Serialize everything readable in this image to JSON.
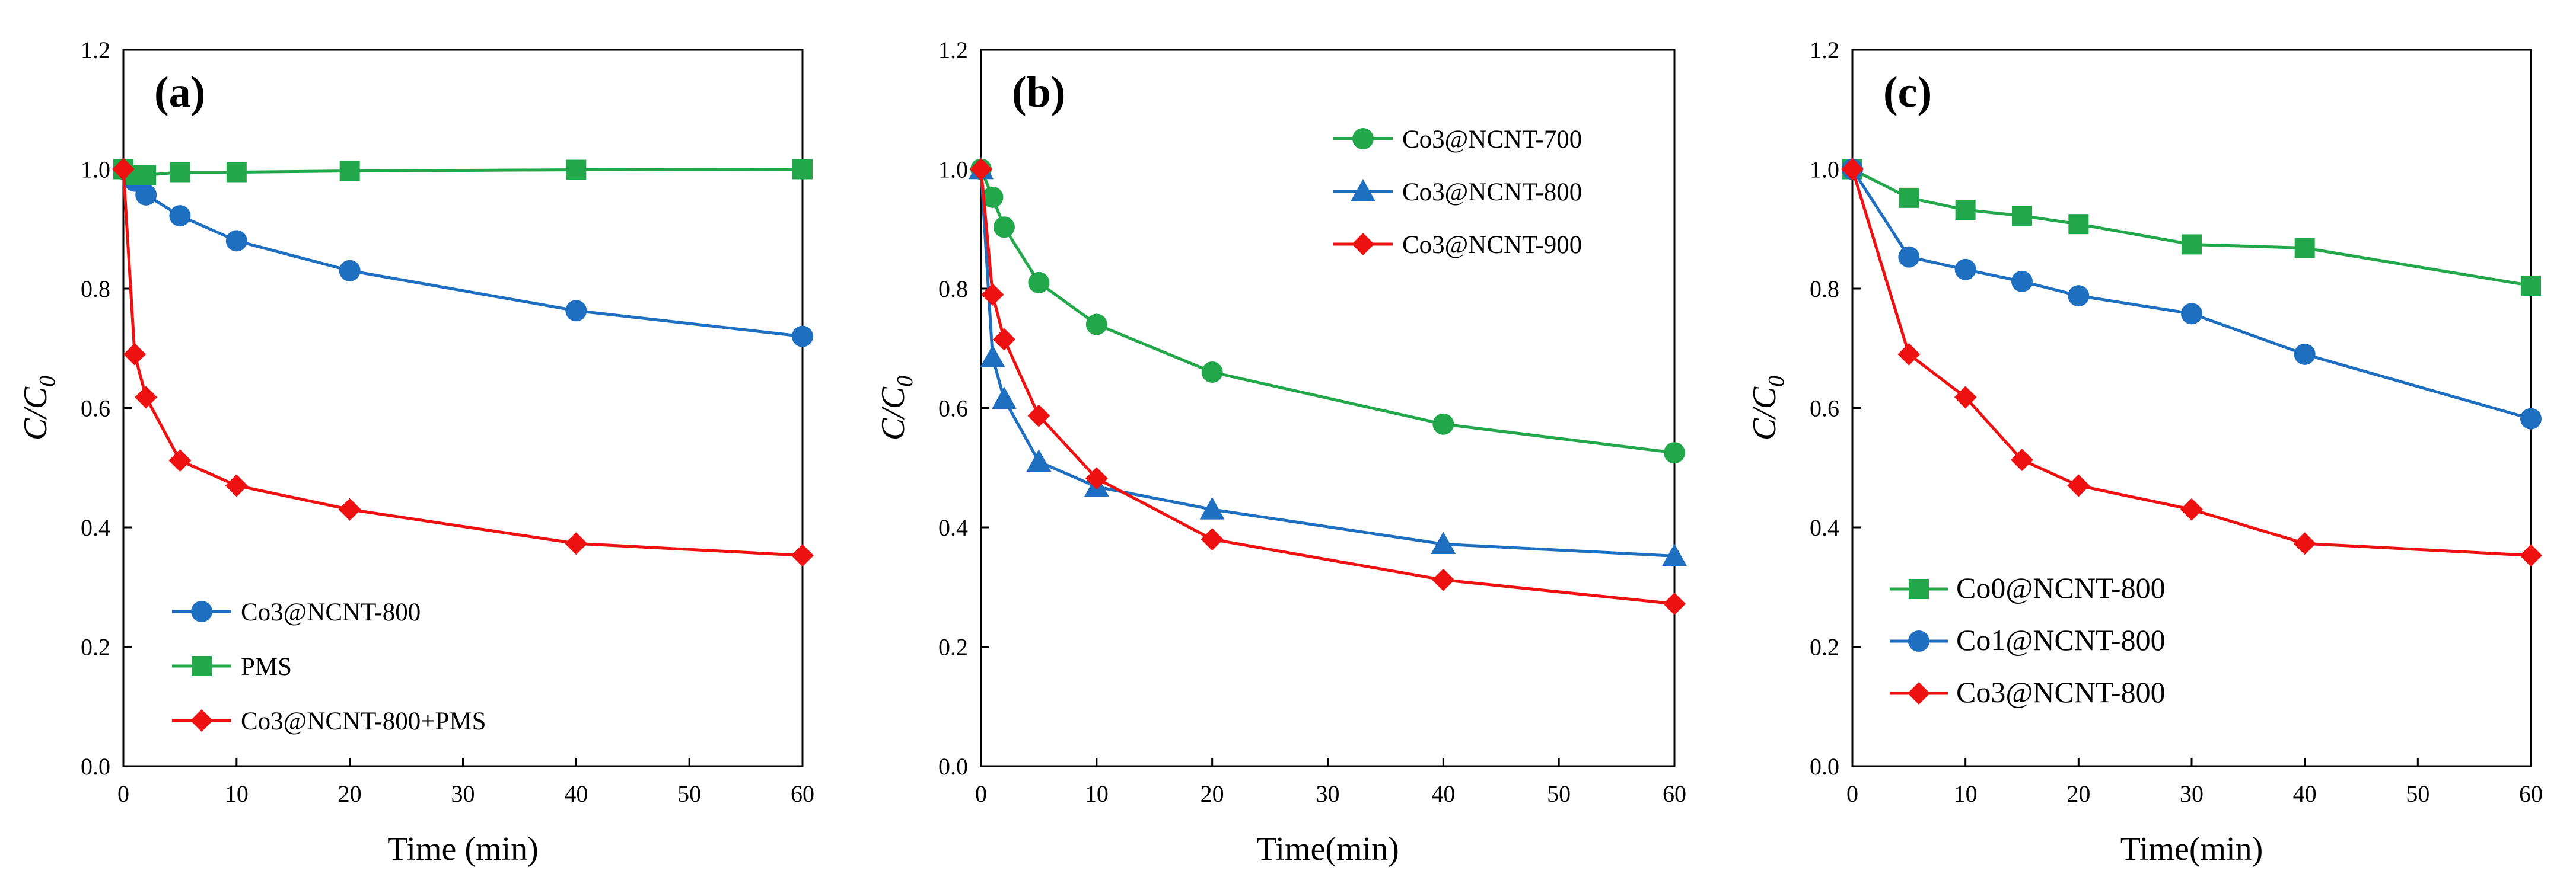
{
  "chart_data": [
    {
      "type": "line",
      "panel_label": "(a)",
      "xlabel": "Time (min)",
      "ylabel_main": "C/C",
      "ylabel_sub": "0",
      "xlim": [
        0,
        60
      ],
      "ylim": [
        0,
        1.2
      ],
      "xticks": [
        "0",
        "10",
        "20",
        "30",
        "40",
        "50",
        "60"
      ],
      "yticks": [
        "0.0",
        "0.2",
        "0.4",
        "0.6",
        "0.8",
        "1.0",
        "1.2"
      ],
      "legend_position": "bottom-left",
      "series": [
        {
          "name": "Co3@NCNT-800",
          "color": "#1f6fc0",
          "marker": "circle",
          "x": [
            0,
            1,
            2,
            5,
            10,
            20,
            40,
            60
          ],
          "y": [
            1.0,
            0.98,
            0.957,
            0.922,
            0.88,
            0.83,
            0.763,
            0.72
          ]
        },
        {
          "name": "PMS",
          "color": "#22a84a",
          "marker": "square",
          "x": [
            0,
            1,
            2,
            5,
            10,
            20,
            40,
            60
          ],
          "y": [
            1.0,
            0.99,
            0.99,
            0.995,
            0.995,
            0.997,
            0.999,
            1.0
          ]
        },
        {
          "name": "Co3@NCNT-800+PMS",
          "color": "#ee1111",
          "marker": "diamond",
          "x": [
            0,
            1,
            2,
            5,
            10,
            20,
            40,
            60
          ],
          "y": [
            1.0,
            0.69,
            0.618,
            0.512,
            0.47,
            0.43,
            0.373,
            0.353
          ]
        }
      ]
    },
    {
      "type": "line",
      "panel_label": "(b)",
      "xlabel": "Time(min)",
      "ylabel_main": "C/C",
      "ylabel_sub": "0",
      "xlim": [
        0,
        60
      ],
      "ylim": [
        0,
        1.2
      ],
      "xticks": [
        "0",
        "10",
        "20",
        "30",
        "40",
        "50",
        "60"
      ],
      "yticks": [
        "0.0",
        "0.2",
        "0.4",
        "0.6",
        "0.8",
        "1.0",
        "1.2"
      ],
      "legend_position": "top-right",
      "series": [
        {
          "name": "Co3@NCNT-700",
          "color": "#22a84a",
          "marker": "circle",
          "x": [
            0,
            1,
            2,
            5,
            10,
            20,
            40,
            60
          ],
          "y": [
            1.0,
            0.953,
            0.903,
            0.81,
            0.74,
            0.66,
            0.573,
            0.525
          ]
        },
        {
          "name": "Co3@NCNT-800",
          "color": "#1f6fc0",
          "marker": "triangle",
          "x": [
            0,
            1,
            2,
            5,
            10,
            20,
            40,
            60
          ],
          "y": [
            1.0,
            0.685,
            0.615,
            0.51,
            0.468,
            0.43,
            0.372,
            0.352
          ]
        },
        {
          "name": "Co3@NCNT-900",
          "color": "#ee1111",
          "marker": "diamond",
          "x": [
            0,
            1,
            2,
            5,
            10,
            20,
            40,
            60
          ],
          "y": [
            1.0,
            0.79,
            0.715,
            0.587,
            0.482,
            0.38,
            0.312,
            0.272
          ]
        }
      ]
    },
    {
      "type": "line",
      "panel_label": "(c)",
      "xlabel": "Time(min)",
      "ylabel_main": "C/C",
      "ylabel_sub": "0",
      "xlim": [
        0,
        60
      ],
      "ylim": [
        0,
        1.2
      ],
      "xticks": [
        "0",
        "10",
        "20",
        "30",
        "40",
        "50",
        "60"
      ],
      "yticks": [
        "0.0",
        "0.2",
        "0.4",
        "0.6",
        "0.8",
        "1.0",
        "1.2"
      ],
      "legend_position": "bottom-left",
      "series": [
        {
          "name": "Co0@NCNT-800",
          "color": "#22a84a",
          "marker": "square",
          "x": [
            0,
            5,
            10,
            15,
            20,
            30,
            40,
            60
          ],
          "y": [
            1.0,
            0.952,
            0.932,
            0.922,
            0.908,
            0.874,
            0.868,
            0.805
          ]
        },
        {
          "name": "Co1@NCNT-800",
          "color": "#1f6fc0",
          "marker": "circle",
          "x": [
            0,
            5,
            10,
            15,
            20,
            30,
            40,
            60
          ],
          "y": [
            1.0,
            0.853,
            0.832,
            0.812,
            0.788,
            0.758,
            0.69,
            0.582
          ]
        },
        {
          "name": "Co3@NCNT-800",
          "color": "#ee1111",
          "marker": "diamond",
          "x": [
            0,
            5,
            10,
            15,
            20,
            30,
            40,
            60
          ],
          "y": [
            1.0,
            0.69,
            0.618,
            0.513,
            0.47,
            0.43,
            0.373,
            0.353
          ]
        }
      ]
    }
  ]
}
